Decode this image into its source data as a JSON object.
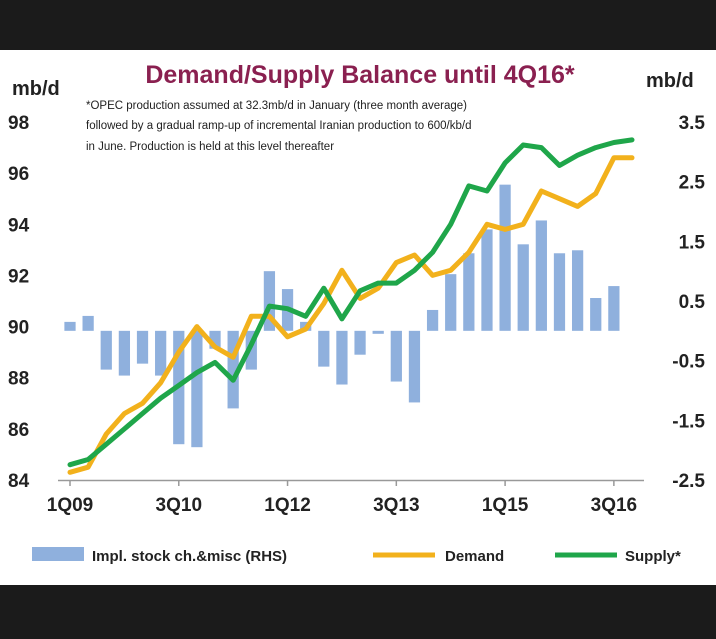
{
  "chart_data": {
    "type": "bar+line",
    "title": "Demand/Supply Balance until 4Q16*",
    "note_lines": [
      "*OPEC production assumed at 32.3mb/d in January (three month average)",
      "followed by a gradual ramp-up of incremental Iranian production to 600/kb/d",
      "in June. Production is held at this level thereafter"
    ],
    "left_unit": "mb/d",
    "right_unit": "mb/d",
    "left_ylim": [
      84,
      98
    ],
    "left_ticks": [
      "84",
      "86",
      "88",
      "90",
      "92",
      "94",
      "96",
      "98"
    ],
    "right_ylim": [
      -2.5,
      3.5
    ],
    "right_ticks": [
      "-2.5",
      "-1.5",
      "-0.5",
      "0.5",
      "1.5",
      "2.5",
      "3.5"
    ],
    "categories": [
      "1Q09",
      "2Q09",
      "3Q09",
      "4Q09",
      "1Q10",
      "2Q10",
      "3Q10",
      "4Q10",
      "1Q11",
      "2Q11",
      "3Q11",
      "4Q11",
      "1Q12",
      "2Q12",
      "3Q12",
      "4Q12",
      "1Q13",
      "2Q13",
      "3Q13",
      "4Q13",
      "1Q14",
      "2Q14",
      "3Q14",
      "4Q14",
      "1Q15",
      "2Q15",
      "3Q15",
      "4Q15",
      "1Q16",
      "2Q16",
      "3Q16",
      "4Q16"
    ],
    "x_tick_labels": [
      "1Q09",
      "3Q10",
      "1Q12",
      "3Q13",
      "1Q15",
      "3Q16"
    ],
    "x_tick_indices": [
      0,
      6,
      12,
      18,
      24,
      30
    ],
    "series": [
      {
        "name": "Impl. stock ch.&misc (RHS)",
        "type": "bar",
        "axis": "right",
        "color": "#8fb0dd",
        "values": [
          0.15,
          0.25,
          -0.65,
          -0.75,
          -0.55,
          -0.75,
          -1.9,
          -1.95,
          -0.3,
          -1.3,
          -0.65,
          1.0,
          0.7,
          0.15,
          -0.6,
          -0.9,
          -0.4,
          -0.05,
          -0.85,
          -1.2,
          0.35,
          0.95,
          1.3,
          1.7,
          2.45,
          1.45,
          1.85,
          1.3,
          1.35,
          0.55,
          0.75,
          0.0
        ]
      },
      {
        "name": "Demand",
        "type": "line",
        "axis": "left",
        "color": "#f2b11c",
        "values": [
          84.3,
          84.5,
          85.8,
          86.6,
          87.0,
          87.8,
          89.0,
          90.0,
          89.2,
          88.8,
          90.4,
          90.4,
          89.6,
          89.9,
          90.9,
          92.2,
          91.1,
          91.5,
          92.5,
          92.8,
          92.0,
          92.2,
          92.9,
          94.0,
          93.8,
          94.0,
          95.3,
          95.0,
          94.7,
          95.2,
          96.6,
          96.6
        ]
      },
      {
        "name": "Supply*",
        "type": "line",
        "axis": "left",
        "color": "#1fa64a",
        "values": [
          84.6,
          84.8,
          85.4,
          86.0,
          86.6,
          87.2,
          87.7,
          88.2,
          88.6,
          87.9,
          89.3,
          90.8,
          90.7,
          90.4,
          91.5,
          90.3,
          91.4,
          91.7,
          91.7,
          92.2,
          92.9,
          94.0,
          95.5,
          95.3,
          96.4,
          97.1,
          97.0,
          96.3,
          96.7,
          97.0,
          97.2,
          97.3
        ]
      }
    ],
    "legend_placement": "bottom",
    "grid": false
  }
}
